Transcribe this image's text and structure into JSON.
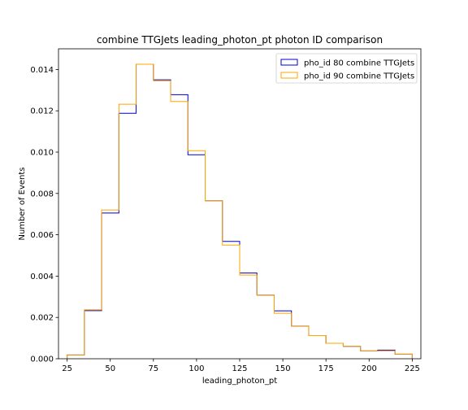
{
  "chart_data": {
    "type": "histogram-step",
    "title": "combine TTGJets leading_photon_pt photon ID comparison",
    "xlabel": "leading_photon_pt",
    "ylabel": "Number of Events",
    "xlim": [
      20,
      230
    ],
    "ylim": [
      0,
      0.015
    ],
    "xticks": [
      25,
      50,
      75,
      100,
      125,
      150,
      175,
      200,
      225
    ],
    "yticks": [
      0.0,
      0.002,
      0.004,
      0.006,
      0.008,
      0.01,
      0.012,
      0.014
    ],
    "ytick_labels": [
      "0.000",
      "0.002",
      "0.004",
      "0.006",
      "0.008",
      "0.010",
      "0.012",
      "0.014"
    ],
    "bin_edges": [
      25,
      35,
      45,
      55,
      65,
      75,
      85,
      95,
      105,
      115,
      125,
      135,
      145,
      155,
      165,
      175,
      185,
      195,
      205,
      215,
      225
    ],
    "legend_position": "top-right",
    "series": [
      {
        "name": "pho_id 80 combine TTGJets",
        "color": "#0000cc",
        "values": [
          0.00018,
          0.00233,
          0.00705,
          0.01188,
          0.01425,
          0.0135,
          0.01278,
          0.00987,
          0.00765,
          0.00568,
          0.00415,
          0.00308,
          0.00232,
          0.00158,
          0.00112,
          0.00075,
          0.0006,
          0.00038,
          0.00042,
          0.00022
        ]
      },
      {
        "name": "pho_id 90 combine TTGJets",
        "color": "#ffa500",
        "values": [
          0.00018,
          0.00237,
          0.0072,
          0.01232,
          0.01425,
          0.01345,
          0.01245,
          0.01007,
          0.00765,
          0.0055,
          0.00405,
          0.00308,
          0.0022,
          0.00158,
          0.00112,
          0.00075,
          0.0006,
          0.00038,
          0.00038,
          0.00022
        ]
      }
    ]
  }
}
